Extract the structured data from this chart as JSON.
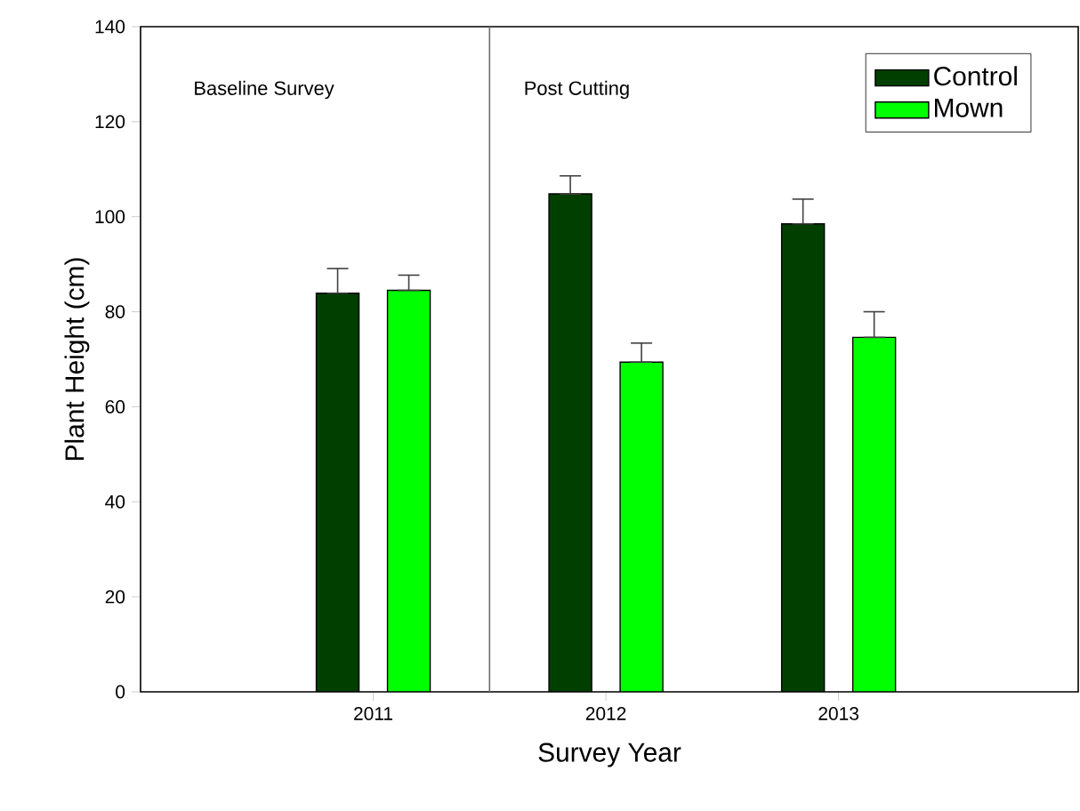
{
  "chart_data": {
    "type": "bar",
    "xlabel": "Survey Year",
    "ylabel": "Plant Height (cm)",
    "categories": [
      "2011",
      "2012",
      "2013"
    ],
    "series": [
      {
        "name": "Control",
        "color": "#003f00",
        "values": [
          83.9,
          104.8,
          98.5
        ],
        "errors": [
          [
            83.9,
            89.1
          ],
          [
            104.8,
            108.6
          ],
          [
            98.5,
            103.7
          ]
        ]
      },
      {
        "name": "Mown",
        "color": "#00ff00",
        "values": [
          84.5,
          69.4,
          74.6
        ],
        "errors": [
          [
            84.5,
            87.7
          ],
          [
            69.4,
            73.4
          ],
          [
            74.6,
            80.0
          ]
        ]
      }
    ],
    "ylim": [
      0,
      140
    ],
    "yticks": [
      0,
      20,
      40,
      60,
      80,
      100,
      120,
      140
    ],
    "annotations": [
      "Baseline Survey",
      "Post Cutting"
    ],
    "legend": "top right",
    "grid": false
  }
}
